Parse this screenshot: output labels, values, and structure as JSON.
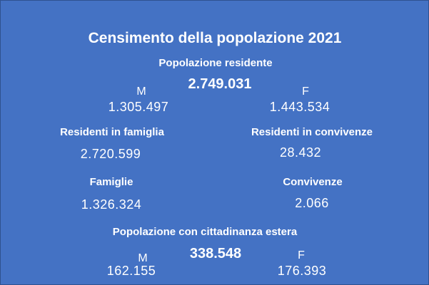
{
  "title": "Censimento della popolazione 2021",
  "resident_population": {
    "label": "Popolazione residente",
    "total": "2.749.031",
    "male_label": "M",
    "male_value": "1.305.497",
    "female_label": "F",
    "female_value": "1.443.534"
  },
  "residents_in_families": {
    "label": "Residenti in famiglia",
    "value": "2.720.599"
  },
  "residents_in_cohabitations": {
    "label": "Residenti in convivenze",
    "value": "28.432"
  },
  "families": {
    "label": "Famiglie",
    "value": "1.326.324"
  },
  "cohabitations": {
    "label": "Convivenze",
    "value": "2.066"
  },
  "foreign_citizenship": {
    "label": "Popolazione con cittadinanza estera",
    "total": "338.548",
    "male_label": "M",
    "male_value": "162.155",
    "female_label": "F",
    "female_value": "176.393"
  },
  "colors": {
    "background": "#4472c4",
    "text": "#ffffff"
  }
}
